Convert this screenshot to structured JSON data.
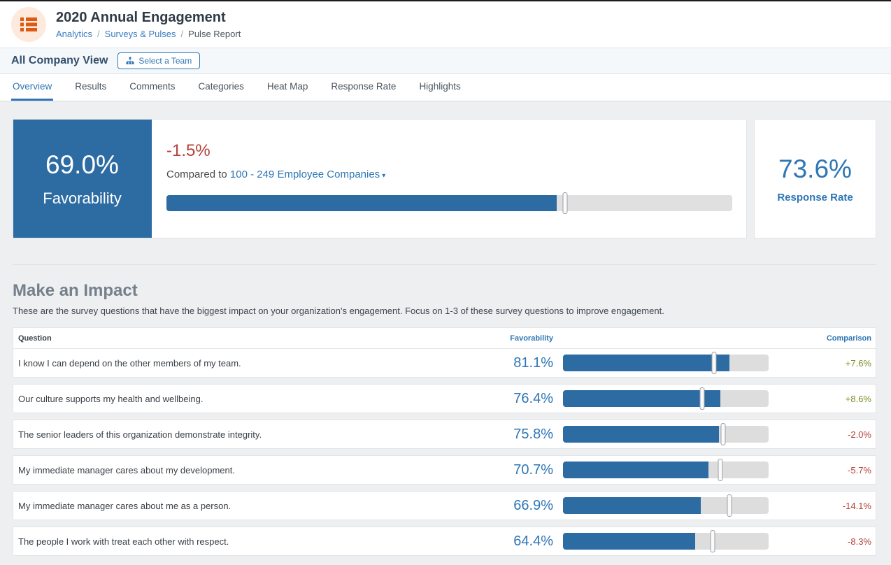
{
  "colors": {
    "accent_blue": "#2d6ba3",
    "link_blue": "#2e76b5",
    "negative_red": "#b2423b",
    "positive_green": "#7d8f25",
    "brand_orange": "#dc5a12"
  },
  "header": {
    "title": "2020 Annual Engagement",
    "breadcrumb_separator": "/",
    "breadcrumbs": [
      {
        "label": "Analytics"
      },
      {
        "label": "Surveys & Pulses"
      },
      {
        "label": "Pulse Report"
      }
    ]
  },
  "view_bar": {
    "title": "All Company View",
    "select_team_button": "Select a Team"
  },
  "tabs": [
    "Overview",
    "Results",
    "Comments",
    "Categories",
    "Heat Map",
    "Response Rate",
    "Highlights"
  ],
  "active_tab_index": 0,
  "summary": {
    "favorability": {
      "value": "69.0%",
      "label": "Favorability",
      "percent": 69.0
    },
    "comparison": {
      "delta": "-1.5%",
      "prefix": "Compared to",
      "benchmark_label": "100 - 249 Employee Companies",
      "benchmark_percent": 70.5,
      "caret": "▾"
    },
    "response_rate": {
      "value": "73.6%",
      "label": "Response Rate"
    }
  },
  "impact": {
    "title": "Make an Impact",
    "subtitle": "These are the survey questions that have the biggest impact on your organization's engagement. Focus on 1-3 of these survey questions to improve engagement.",
    "columns": {
      "question": "Question",
      "favorability": "Favorability",
      "comparison": "Comparison"
    },
    "rows": [
      {
        "question": "I know I can depend on the other members of my team.",
        "favorability": "81.1%",
        "favorability_percent": 81.1,
        "benchmark_percent": 73.5,
        "comparison": "+7.6%",
        "trend": "positive"
      },
      {
        "question": "Our culture supports my health and wellbeing.",
        "favorability": "76.4%",
        "favorability_percent": 76.4,
        "benchmark_percent": 67.8,
        "comparison": "+8.6%",
        "trend": "positive"
      },
      {
        "question": "The senior leaders of this organization demonstrate integrity.",
        "favorability": "75.8%",
        "favorability_percent": 75.8,
        "benchmark_percent": 77.8,
        "comparison": "-2.0%",
        "trend": "negative"
      },
      {
        "question": "My immediate manager cares about my development.",
        "favorability": "70.7%",
        "favorability_percent": 70.7,
        "benchmark_percent": 76.4,
        "comparison": "-5.7%",
        "trend": "negative"
      },
      {
        "question": "My immediate manager cares about me as a person.",
        "favorability": "66.9%",
        "favorability_percent": 66.9,
        "benchmark_percent": 81.0,
        "comparison": "-14.1%",
        "trend": "negative"
      },
      {
        "question": "The people I work with treat each other with respect.",
        "favorability": "64.4%",
        "favorability_percent": 64.4,
        "benchmark_percent": 72.7,
        "comparison": "-8.3%",
        "trend": "negative"
      }
    ]
  }
}
